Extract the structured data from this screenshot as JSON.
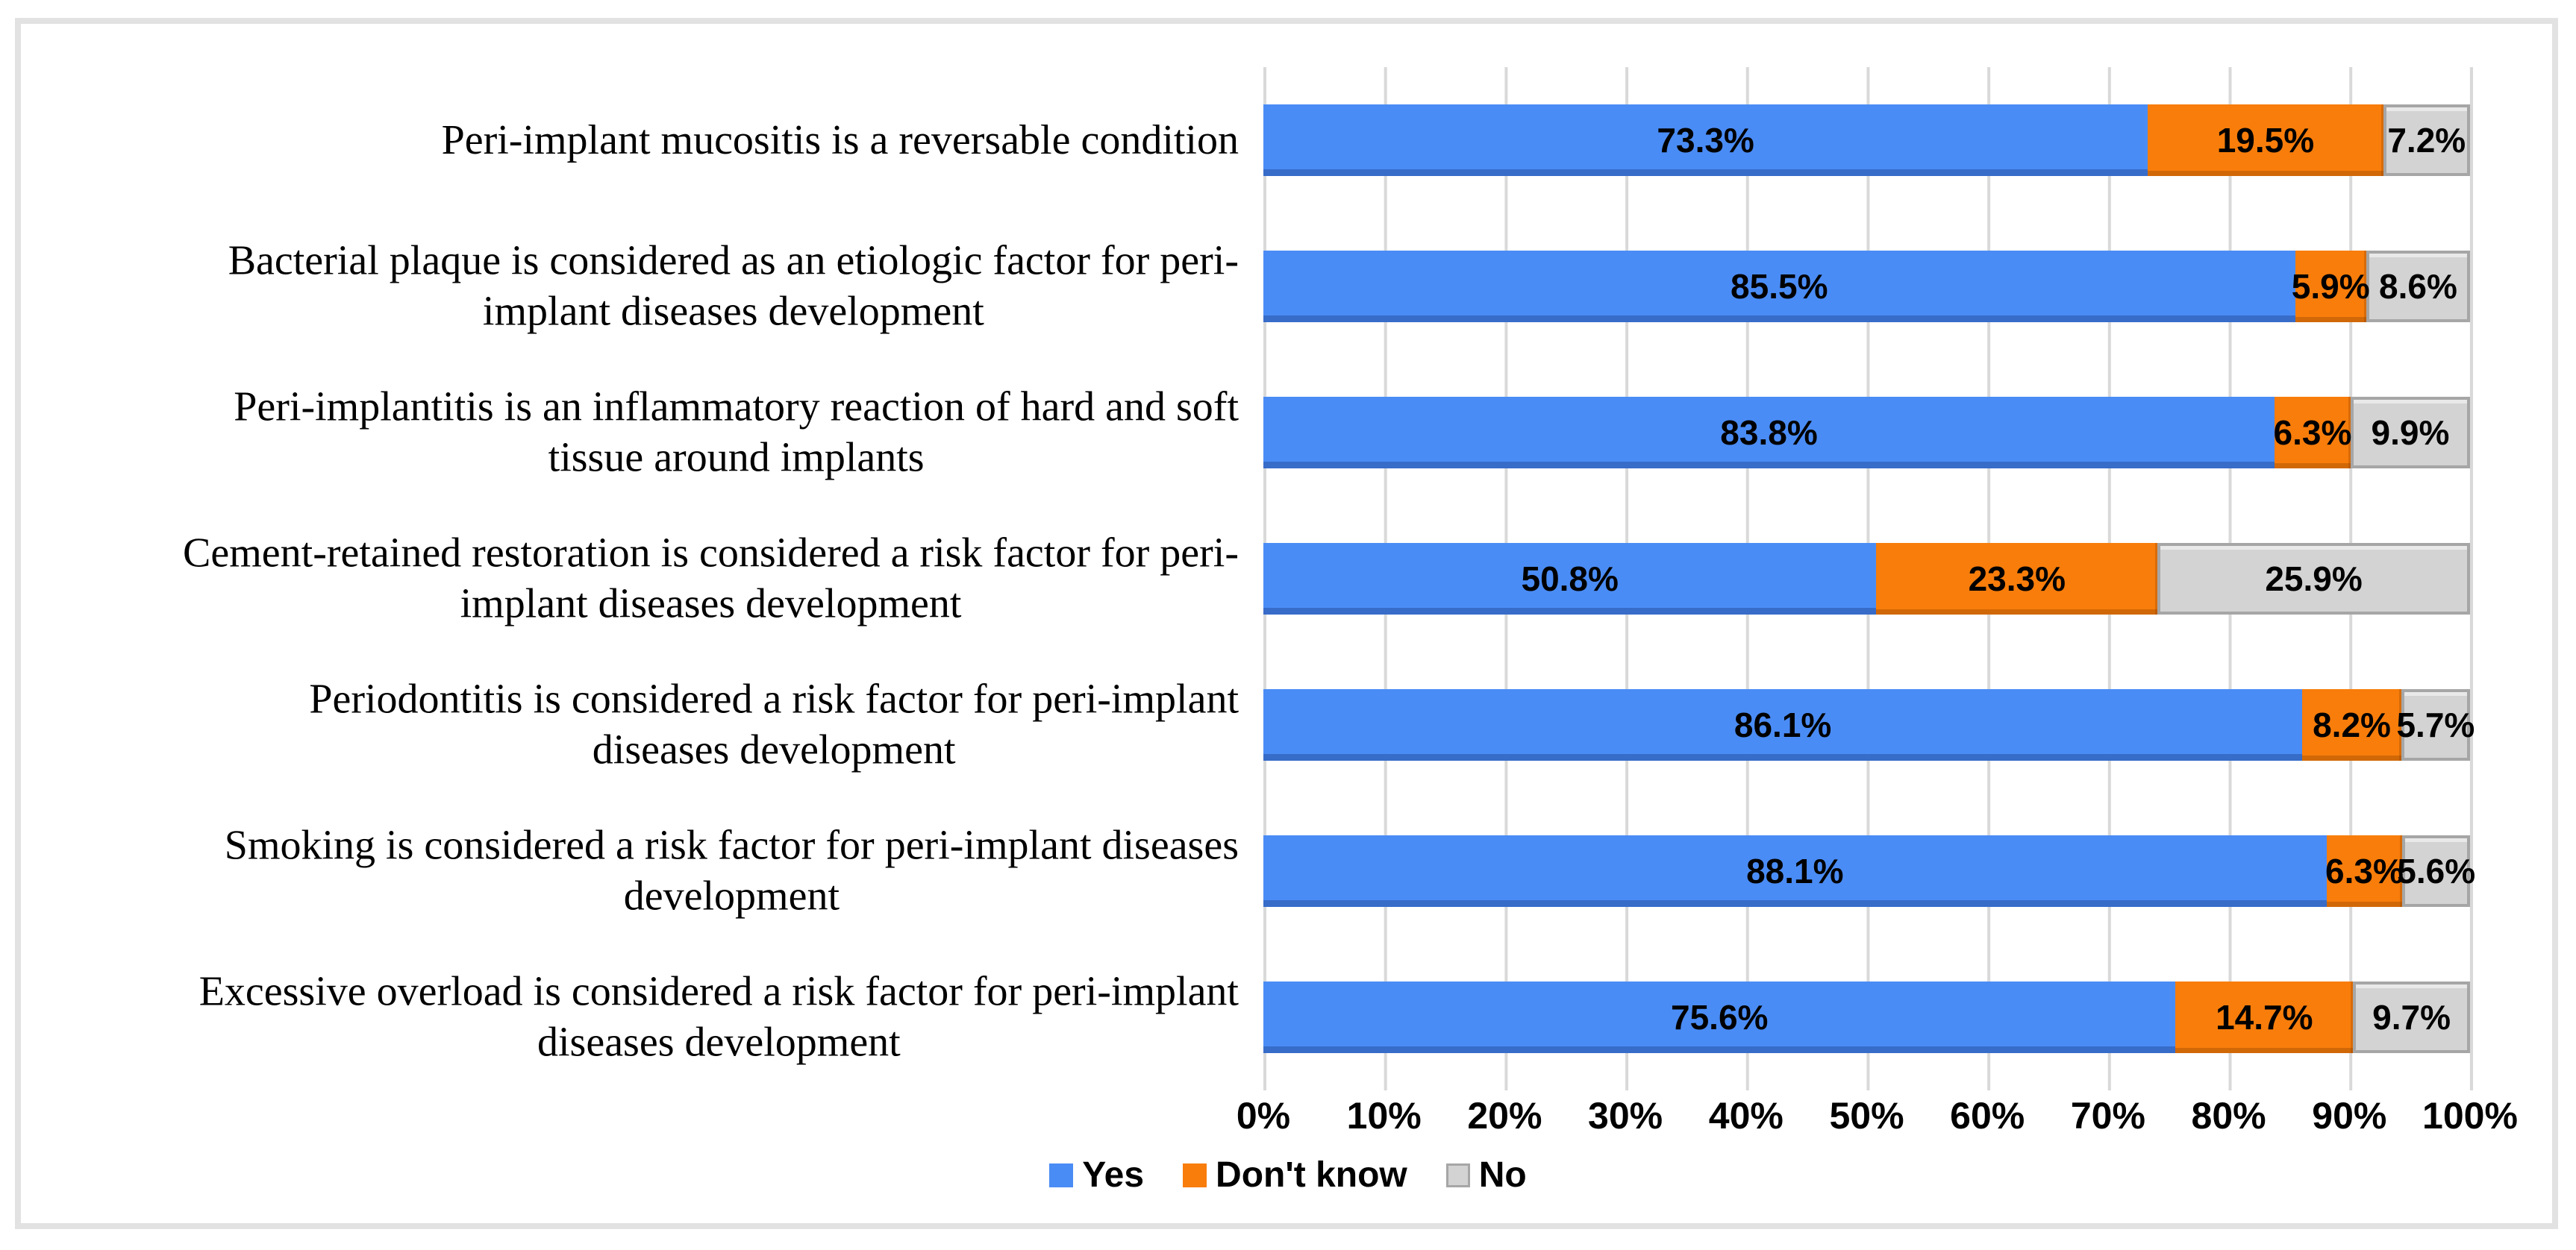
{
  "figure": {
    "background": "#ffffff",
    "frame_border_color": "#e2e2e2",
    "text_color": "#000000"
  },
  "chart_data": {
    "type": "bar",
    "orientation": "horizontal",
    "stacked": true,
    "title": "",
    "xlabel": "",
    "ylabel": "",
    "categories": [
      "Peri-implant mucositis is a reversable condition",
      "Bacterial plaque is considered as an etiologic factor for peri-\nimplant diseases development",
      "Peri-implantitis is an inflammatory reaction of hard and soft\ntissue around implants",
      "Cement-retained restoration is considered a risk factor for peri-\nimplant diseases development",
      "Periodontitis is considered a risk factor for peri-implant\ndiseases development",
      "Smoking is considered a risk factor for peri-implant diseases\ndevelopment",
      "Excessive overload is considered a risk factor for peri-implant\ndiseases development"
    ],
    "series": [
      {
        "name": "Yes",
        "color": "#4a8cf5",
        "values": [
          73.3,
          85.5,
          83.8,
          50.8,
          86.1,
          88.1,
          75.6
        ]
      },
      {
        "name": "Don't know",
        "color": "#f87d0b",
        "values": [
          19.5,
          5.9,
          6.3,
          23.3,
          8.2,
          6.3,
          14.7
        ]
      },
      {
        "name": "No",
        "color": "#d3d3d3",
        "values": [
          7.2,
          8.6,
          9.9,
          25.9,
          5.7,
          5.6,
          9.7
        ]
      }
    ],
    "value_label_suffix": "%",
    "x_axis": {
      "min": 0,
      "max": 100,
      "ticks": [
        "0%",
        "10%",
        "20%",
        "30%",
        "40%",
        "50%",
        "60%",
        "70%",
        "80%",
        "90%",
        "100%"
      ],
      "gridlines": true,
      "gridline_color": "#d9d9d9"
    },
    "legend": {
      "position": "bottom",
      "entries": [
        "Yes",
        "Don't know",
        "No"
      ]
    }
  }
}
